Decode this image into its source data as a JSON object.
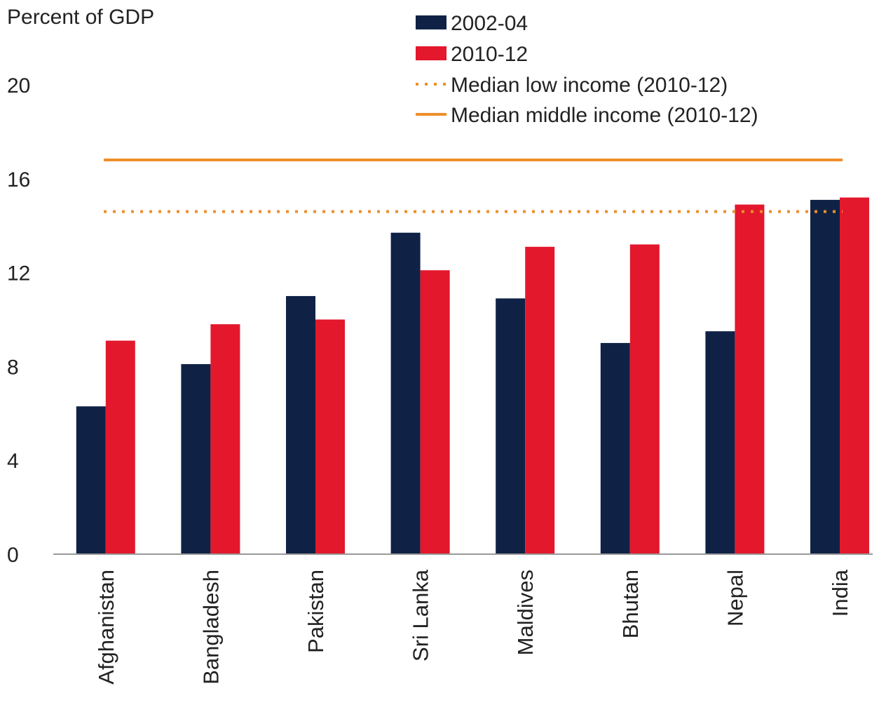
{
  "chart_data": {
    "type": "bar",
    "ylabel": "Percent of GDP",
    "categories": [
      "Afghanistan",
      "Bangladesh",
      "Pakistan",
      "Sri Lanka",
      "Maldives",
      "Bhutan",
      "Nepal",
      "India"
    ],
    "series": [
      {
        "name": "2002-04",
        "color": "#0f2246",
        "values": [
          6.3,
          8.1,
          11.0,
          13.7,
          10.9,
          9.0,
          9.5,
          15.1
        ]
      },
      {
        "name": "2010-12",
        "color": "#e3182d",
        "values": [
          9.1,
          9.8,
          10.0,
          12.1,
          13.1,
          13.2,
          14.9,
          15.2
        ]
      }
    ],
    "reference_lines": [
      {
        "name": "Median low income (2010-12)",
        "value": 14.6,
        "color": "#ef8f2b",
        "style": "dotted"
      },
      {
        "name": "Median middle income (2010-12)",
        "value": 16.8,
        "color": "#ef8f2b",
        "style": "solid"
      }
    ],
    "ylim": [
      0,
      20
    ],
    "yticks": [
      0,
      4,
      8,
      12,
      16,
      20
    ],
    "grid": false,
    "legend": "top-right"
  }
}
